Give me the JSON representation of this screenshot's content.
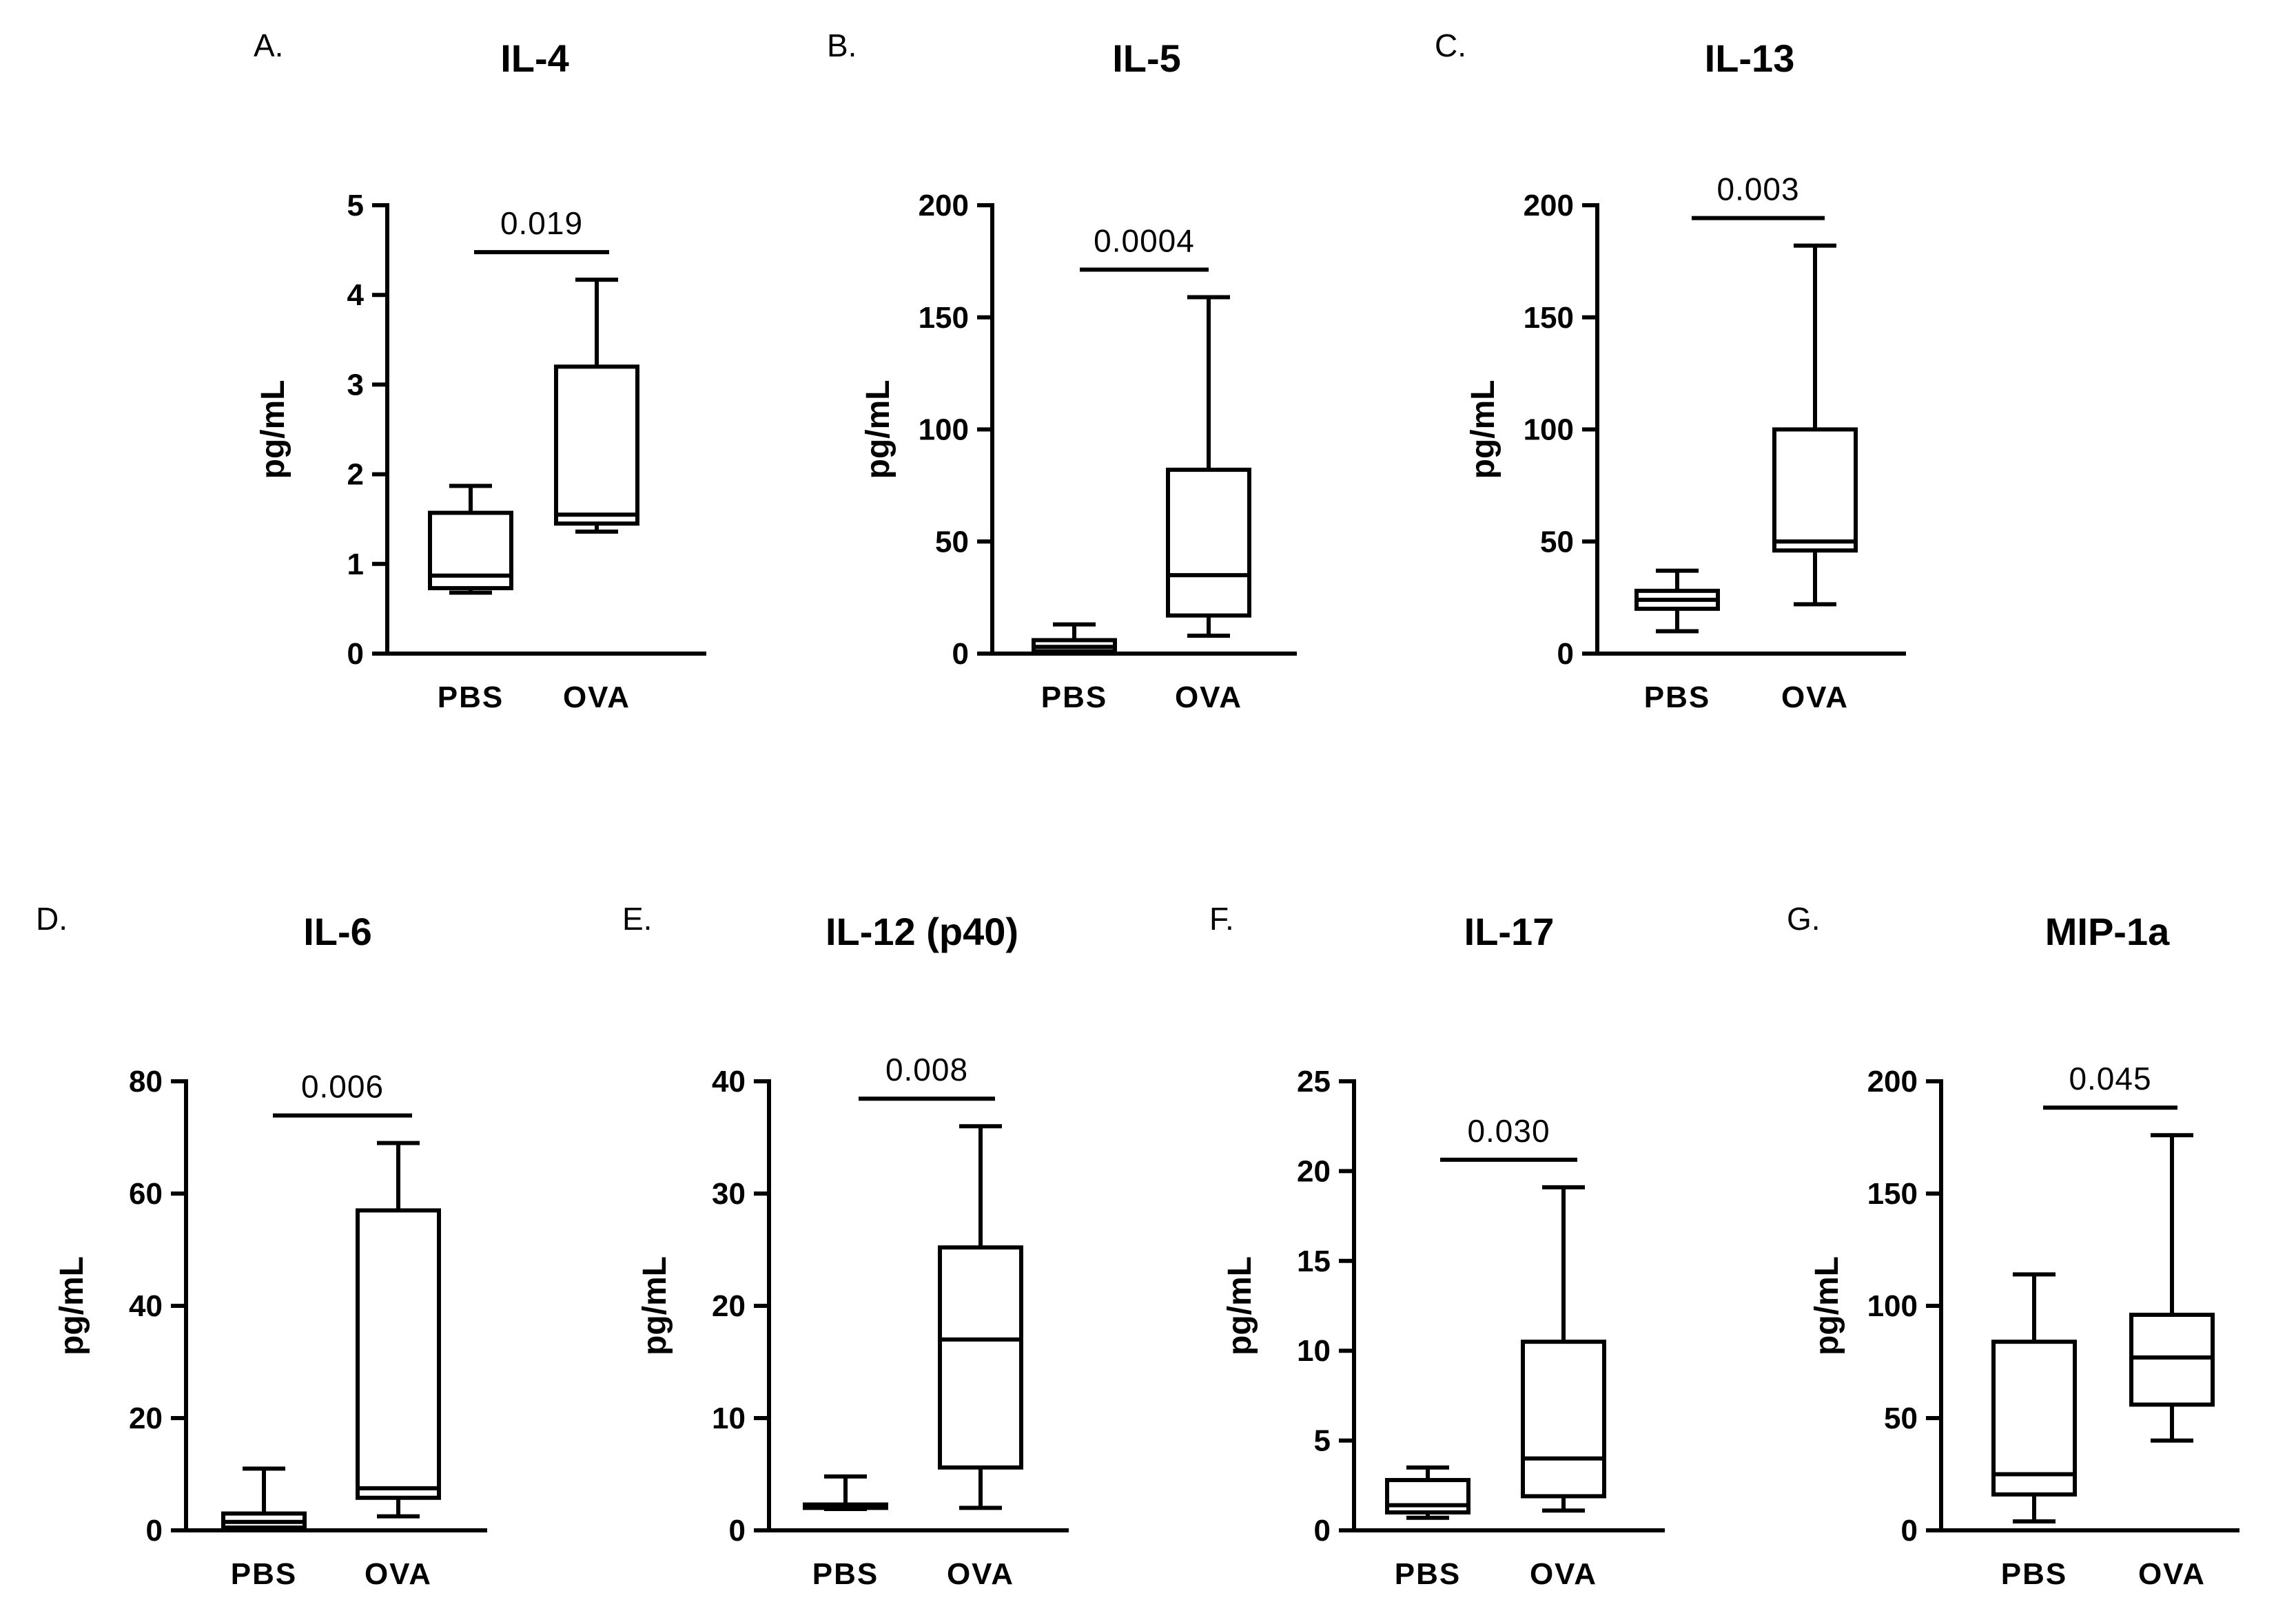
{
  "figure": {
    "ylabel": "pg/mL"
  },
  "chart_data": [
    {
      "type": "box",
      "panel": "A.",
      "title": "IL-4",
      "ylabel": "pg/mL",
      "categories": [
        "PBS",
        "OVA"
      ],
      "yticks": [
        0,
        1,
        2,
        3,
        4,
        5
      ],
      "ylim": [
        0,
        5
      ],
      "boxes": [
        {
          "group": "PBS",
          "min": 0.68,
          "q1": 0.73,
          "median": 0.87,
          "q3": 1.57,
          "max": 1.87
        },
        {
          "group": "OVA",
          "min": 1.36,
          "q1": 1.45,
          "median": 1.55,
          "q3": 3.2,
          "max": 4.17
        }
      ],
      "p_value": "0.019"
    },
    {
      "type": "box",
      "panel": "B.",
      "title": "IL-5",
      "ylabel": "pg/mL",
      "categories": [
        "PBS",
        "OVA"
      ],
      "yticks": [
        0,
        50,
        100,
        150,
        200
      ],
      "ylim": [
        0,
        200
      ],
      "boxes": [
        {
          "group": "PBS",
          "min": 0,
          "q1": 1,
          "median": 3,
          "q3": 6,
          "max": 13
        },
        {
          "group": "OVA",
          "min": 8,
          "q1": 17,
          "median": 35,
          "q3": 82,
          "max": 159
        }
      ],
      "p_value": "0.0004"
    },
    {
      "type": "box",
      "panel": "C.",
      "title": "IL-13",
      "ylabel": "pg/mL",
      "categories": [
        "PBS",
        "OVA"
      ],
      "yticks": [
        0,
        50,
        100,
        150,
        200
      ],
      "ylim": [
        0,
        200
      ],
      "boxes": [
        {
          "group": "PBS",
          "min": 10,
          "q1": 20,
          "median": 24,
          "q3": 28,
          "max": 37
        },
        {
          "group": "OVA",
          "min": 22,
          "q1": 46,
          "median": 50,
          "q3": 100,
          "max": 182
        }
      ],
      "p_value": "0.003"
    },
    {
      "type": "box",
      "panel": "D.",
      "title": "IL-6",
      "ylabel": "pg/mL",
      "categories": [
        "PBS",
        "OVA"
      ],
      "yticks": [
        0,
        20,
        40,
        60,
        80
      ],
      "ylim": [
        0,
        80
      ],
      "boxes": [
        {
          "group": "PBS",
          "min": 0,
          "q1": 0.5,
          "median": 1.5,
          "q3": 3,
          "max": 11
        },
        {
          "group": "OVA",
          "min": 2.5,
          "q1": 5.8,
          "median": 7.5,
          "q3": 57,
          "max": 69
        }
      ],
      "p_value": "0.006"
    },
    {
      "type": "box",
      "panel": "E.",
      "title": "IL-12 (p40)",
      "ylabel": "pg/mL",
      "categories": [
        "PBS",
        "OVA"
      ],
      "yticks": [
        0,
        10,
        20,
        30,
        40
      ],
      "ylim": [
        0,
        40
      ],
      "boxes": [
        {
          "group": "PBS",
          "min": 1.9,
          "q1": 2.0,
          "median": 2.1,
          "q3": 2.3,
          "max": 4.8
        },
        {
          "group": "OVA",
          "min": 2,
          "q1": 5.6,
          "median": 17,
          "q3": 25.2,
          "max": 36
        }
      ],
      "p_value": "0.008"
    },
    {
      "type": "box",
      "panel": "F.",
      "title": "IL-17",
      "ylabel": "pg/mL",
      "categories": [
        "PBS",
        "OVA"
      ],
      "yticks": [
        0,
        5,
        10,
        15,
        20,
        25
      ],
      "ylim": [
        0,
        25
      ],
      "boxes": [
        {
          "group": "PBS",
          "min": 0.7,
          "q1": 1.0,
          "median": 1.4,
          "q3": 2.8,
          "max": 3.5
        },
        {
          "group": "OVA",
          "min": 1.1,
          "q1": 1.9,
          "median": 4.0,
          "q3": 10.5,
          "max": 19.1
        }
      ],
      "p_value": "0.030"
    },
    {
      "type": "box",
      "panel": "G.",
      "title": "MIP-1a",
      "ylabel": "pg/mL",
      "categories": [
        "PBS",
        "OVA"
      ],
      "yticks": [
        0,
        50,
        100,
        150,
        200
      ],
      "ylim": [
        0,
        200
      ],
      "boxes": [
        {
          "group": "PBS",
          "min": 4,
          "q1": 16,
          "median": 25,
          "q3": 84,
          "max": 114
        },
        {
          "group": "OVA",
          "min": 40,
          "q1": 56,
          "median": 77,
          "q3": 96,
          "max": 176
        }
      ],
      "p_value": "0.045"
    }
  ]
}
